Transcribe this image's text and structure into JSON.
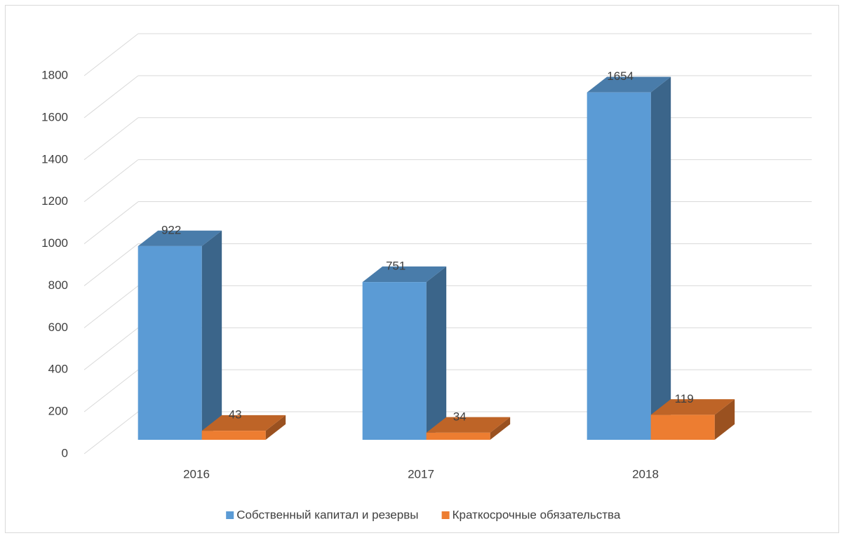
{
  "chart_data": {
    "type": "bar3d",
    "categories": [
      "2016",
      "2017",
      "2018"
    ],
    "series": [
      {
        "name": "Собственный капитал и резервы",
        "color": "#5b9bd5",
        "values": [
          922,
          751,
          1654
        ]
      },
      {
        "name": "Краткосрочные обязательства",
        "color": "#ed7d31",
        "values": [
          43,
          34,
          119
        ]
      }
    ],
    "ylim": [
      0,
      1800
    ],
    "yticks": [
      0,
      200,
      400,
      600,
      800,
      1000,
      1200,
      1400,
      1600,
      1800
    ],
    "grid": true,
    "legend": "bottom"
  }
}
